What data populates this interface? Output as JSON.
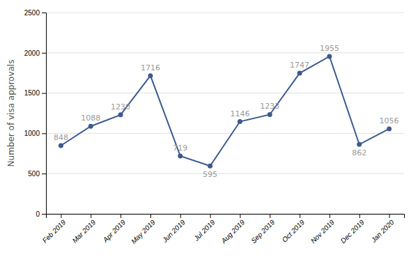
{
  "chart_data": {
    "type": "line",
    "ylabel": "Number of visa approvals",
    "categories": [
      "Feb 2019",
      "Mar 2019",
      "Apr 2019",
      "May 2019",
      "Jun 2019",
      "Jul 2019",
      "Aug 2019",
      "Sep 2019",
      "Oct 2019",
      "Nov 2019",
      "Dec 2019",
      "Jan 2020"
    ],
    "values": [
      848,
      1088,
      1230,
      1716,
      719,
      595,
      1146,
      1233,
      1747,
      1955,
      862,
      1056
    ],
    "color": "#3d5a8e",
    "marker": "circle",
    "ylim": [
      0,
      2500
    ],
    "yticks": [
      0,
      500,
      1000,
      1500,
      2000,
      2500
    ],
    "grid": true,
    "data_labels": true
  }
}
